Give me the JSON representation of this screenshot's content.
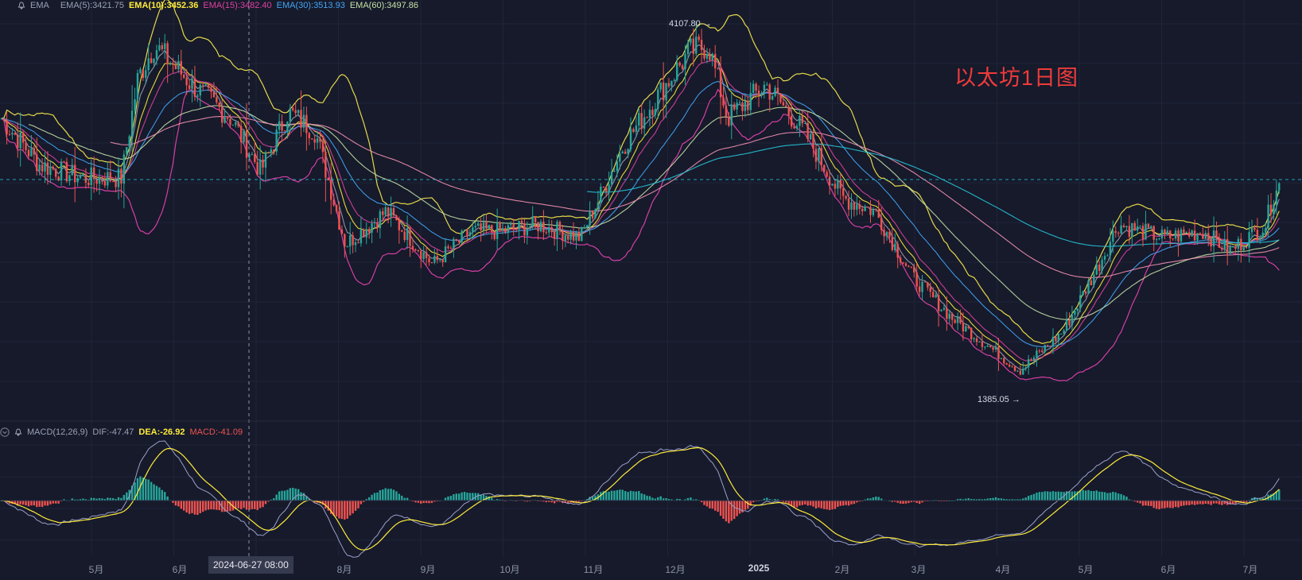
{
  "legend": {
    "indicator": "EMA",
    "ema5": "EMA(5):3421.75",
    "ema10": "EMA(10):3452.36",
    "ema15": "EMA(15):3482.40",
    "ema30": "EMA(30):3513.93",
    "ema60": "EMA(60):3497.86"
  },
  "macd_legend": {
    "indicator": "MACD(12,26,9)",
    "dif": "DIF:-47.47",
    "dea": "DEA:-26.92",
    "macd": "MACD:-41.09"
  },
  "watermark": "以太坊1日图",
  "high_label": "4107.80",
  "low_label": "1385.05",
  "crosshair_date": "2024-06-27 08:00",
  "colors": {
    "background": "#161a2b",
    "up": "#26a69a",
    "down": "#ef5350",
    "ema5": "#9aa0b4",
    "ema10": "#ffeb3b",
    "ema15": "#e040a0",
    "ema30": "#42a5f5",
    "ema60": "#c5e1a5",
    "ema120": "#f48fb1",
    "ema200": "#26c6da",
    "bollinger_upper": "#e6d84a",
    "bollinger_lower": "#d63fa4",
    "dif": "#9aa0c8",
    "dea": "#ffeb3b"
  },
  "chart_data": {
    "type": "candlestick",
    "title": "以太坊1日图",
    "x_ticks": [
      "5月",
      "6月",
      "2024-06-27 08:00",
      "8月",
      "9月",
      "10月",
      "11月",
      "12月",
      "2025",
      "2月",
      "3月",
      "4月",
      "5月",
      "6月",
      "7月"
    ],
    "y_range": [
      1300,
      4200
    ],
    "price_path": [
      [
        "2024-04-01",
        3400
      ],
      [
        "2024-04-15",
        3050
      ],
      [
        "2024-05-01",
        2950
      ],
      [
        "2024-05-15",
        2950
      ],
      [
        "2024-05-21",
        3700
      ],
      [
        "2024-05-27",
        3950
      ],
      [
        "2024-06-10",
        3650
      ],
      [
        "2024-06-24",
        3400
      ],
      [
        "2024-07-05",
        3000
      ],
      [
        "2024-07-15",
        3450
      ],
      [
        "2024-07-25",
        3300
      ],
      [
        "2024-08-05",
        2450
      ],
      [
        "2024-08-20",
        2700
      ],
      [
        "2024-09-06",
        2300
      ],
      [
        "2024-09-20",
        2550
      ],
      [
        "2024-10-01",
        2550
      ],
      [
        "2024-10-15",
        2600
      ],
      [
        "2024-10-30",
        2500
      ],
      [
        "2024-11-06",
        2800
      ],
      [
        "2024-11-15",
        3200
      ],
      [
        "2024-11-25",
        3500
      ],
      [
        "2024-12-09",
        3900
      ],
      [
        "2024-12-16",
        3950
      ],
      [
        "2024-12-23",
        3400
      ],
      [
        "2025-01-06",
        3650
      ],
      [
        "2025-01-20",
        3300
      ],
      [
        "2025-02-03",
        2800
      ],
      [
        "2025-02-15",
        2700
      ],
      [
        "2025-03-01",
        2200
      ],
      [
        "2025-03-15",
        1900
      ],
      [
        "2025-04-09",
        1500
      ],
      [
        "2025-04-25",
        1800
      ],
      [
        "2025-05-08",
        2300
      ],
      [
        "2025-05-15",
        2600
      ],
      [
        "2025-06-01",
        2500
      ],
      [
        "2025-06-15",
        2550
      ],
      [
        "2025-06-25",
        2400
      ],
      [
        "2025-07-08",
        2600
      ],
      [
        "2025-07-12",
        2900
      ]
    ],
    "high": 4107.8,
    "low": 1385.05,
    "series": [
      {
        "name": "EMA(5)",
        "last": 3421.75
      },
      {
        "name": "EMA(10)",
        "last": 3452.36
      },
      {
        "name": "EMA(15)",
        "last": 3482.4
      },
      {
        "name": "EMA(30)",
        "last": 3513.93
      },
      {
        "name": "EMA(60)",
        "last": 3497.86
      }
    ],
    "macd": {
      "params": "12,26,9",
      "dif": -47.47,
      "dea": -26.92,
      "macd": -41.09
    }
  }
}
